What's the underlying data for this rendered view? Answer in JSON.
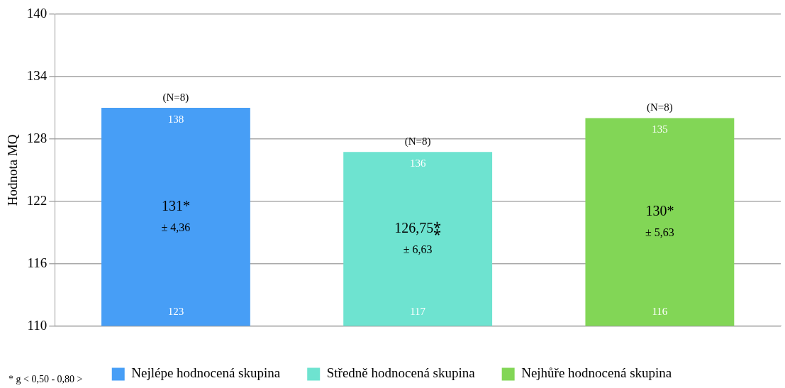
{
  "chart_data": {
    "type": "bar",
    "ylabel": "Hodnota MQ",
    "categories": [
      null,
      null,
      null
    ],
    "series": [
      {
        "name": "Nejlépe hodnocená skupina",
        "color": "#479ef6",
        "values": [
          131,
          null,
          null
        ],
        "value_labels": [
          "131*",
          null,
          null
        ]
      },
      {
        "name": "Středně hodnocená skupina",
        "color": "#6ee3d0",
        "values": [
          null,
          126.75,
          null
        ],
        "value_labels": [
          null,
          "126,75⁑",
          null
        ]
      },
      {
        "name": "Nejhůře hodnocená skupina",
        "color": "#82d656",
        "values": [
          null,
          null,
          130
        ],
        "value_labels": [
          null,
          null,
          "130*"
        ]
      }
    ],
    "ylim": [
      110,
      140
    ],
    "yticks": [
      110,
      116,
      122,
      128,
      134,
      140
    ],
    "grid": "y",
    "legend": "bottom",
    "annotations": [
      "(N=8)",
      "138",
      "± 4,36",
      "123",
      "(N=8)",
      "136",
      "± 6,63",
      "117",
      "(N=8)",
      "135",
      "± 5,63",
      "116",
      "* g < 0,50 - 0,80 >"
    ]
  }
}
